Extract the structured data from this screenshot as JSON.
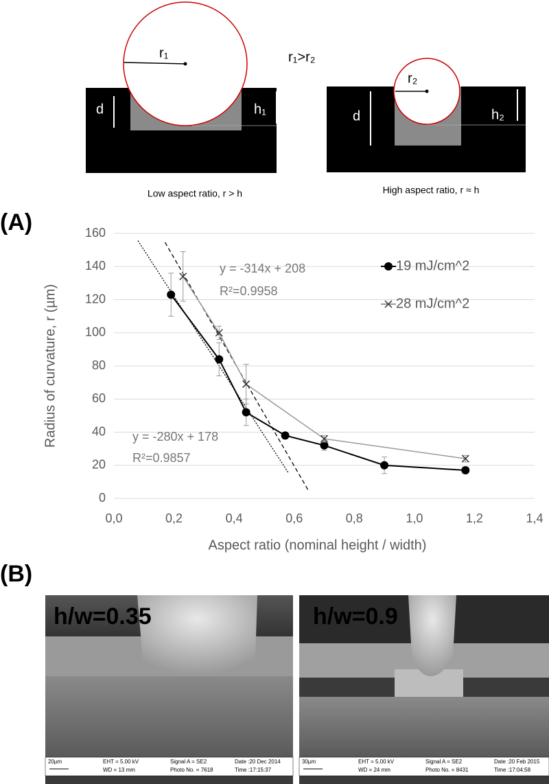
{
  "diagram": {
    "left": {
      "radius": "r₁",
      "depth": "d",
      "height": "h₁",
      "caption": "Low aspect ratio, r > h"
    },
    "relation": "r₁>r₂",
    "right": {
      "radius": "r₂",
      "depth": "d",
      "height": "h₂",
      "caption": "High aspect ratio, r ≈ h"
    }
  },
  "panels": [
    "(A)",
    "(B)"
  ],
  "chart_data": {
    "type": "line",
    "ylabel": "Radius of curvature, r (µm)",
    "xlabel": "Aspect ratio (nominal height / width)",
    "xlim": [
      0,
      1.4
    ],
    "xticks": [
      {
        "value": 0,
        "label": "0,0"
      },
      {
        "value": 0.2,
        "label": "0,2"
      },
      {
        "value": 0.4,
        "label": "0,4"
      },
      {
        "value": 0.6,
        "label": "0,6"
      },
      {
        "value": 0.8,
        "label": "0,8"
      },
      {
        "value": 1.0,
        "label": "1,0"
      },
      {
        "value": 1.2,
        "label": "1,2"
      },
      {
        "value": 1.4,
        "label": "1,4"
      }
    ],
    "ylim": [
      0,
      160
    ],
    "yticks": [
      0,
      20,
      40,
      60,
      80,
      100,
      120,
      140,
      160
    ],
    "grid": true,
    "legend": "top-right",
    "series": [
      {
        "name": "19 mJ/cm^2",
        "color": "#000000",
        "marker": "circle",
        "x": [
          0.19,
          0.35,
          0.44,
          0.57,
          0.7,
          0.9,
          1.17
        ],
        "values": [
          123,
          84,
          52,
          38,
          32,
          20,
          17
        ],
        "errors": [
          13,
          10,
          8,
          2,
          3,
          5,
          2
        ]
      },
      {
        "name": "28 mJ/cm^2",
        "color": "#999999",
        "marker": "x",
        "x": [
          0.23,
          0.35,
          0.44,
          0.7,
          1.17
        ],
        "values": [
          134,
          100,
          69,
          36,
          24
        ],
        "errors": [
          15,
          4,
          12,
          2,
          2
        ]
      }
    ],
    "trendlines": [
      {
        "slope": -314,
        "intercept": 208,
        "x": [
          0.17,
          0.65
        ],
        "dash": "6,4",
        "label": "y = -314x + 208",
        "r2": "R²=0.9958"
      },
      {
        "slope": -280,
        "intercept": 178,
        "x": [
          0.08,
          0.58
        ],
        "dash": "2,2",
        "label": "y = -280x + 178",
        "r2": "R²=0.9857"
      }
    ]
  },
  "sem": [
    {
      "label": "h/w=0.35",
      "scale": "20µm",
      "eht": "EHT =  5.00 kV",
      "wd": "WD =  13 mm",
      "signal": "Signal A = SE2",
      "photo": "Photo No. = 7618",
      "date": "Date :20 Dec 2014",
      "time": "Time :17:15:37"
    },
    {
      "label": "h/w=0.9",
      "scale": "30µm",
      "eht": "EHT =  5.00 kV",
      "wd": "WD =  24 mm",
      "signal": "Signal A = SE2",
      "photo": "Photo No. = 8431",
      "date": "Date :20 Feb 2015",
      "time": "Time :17:04:58"
    }
  ]
}
